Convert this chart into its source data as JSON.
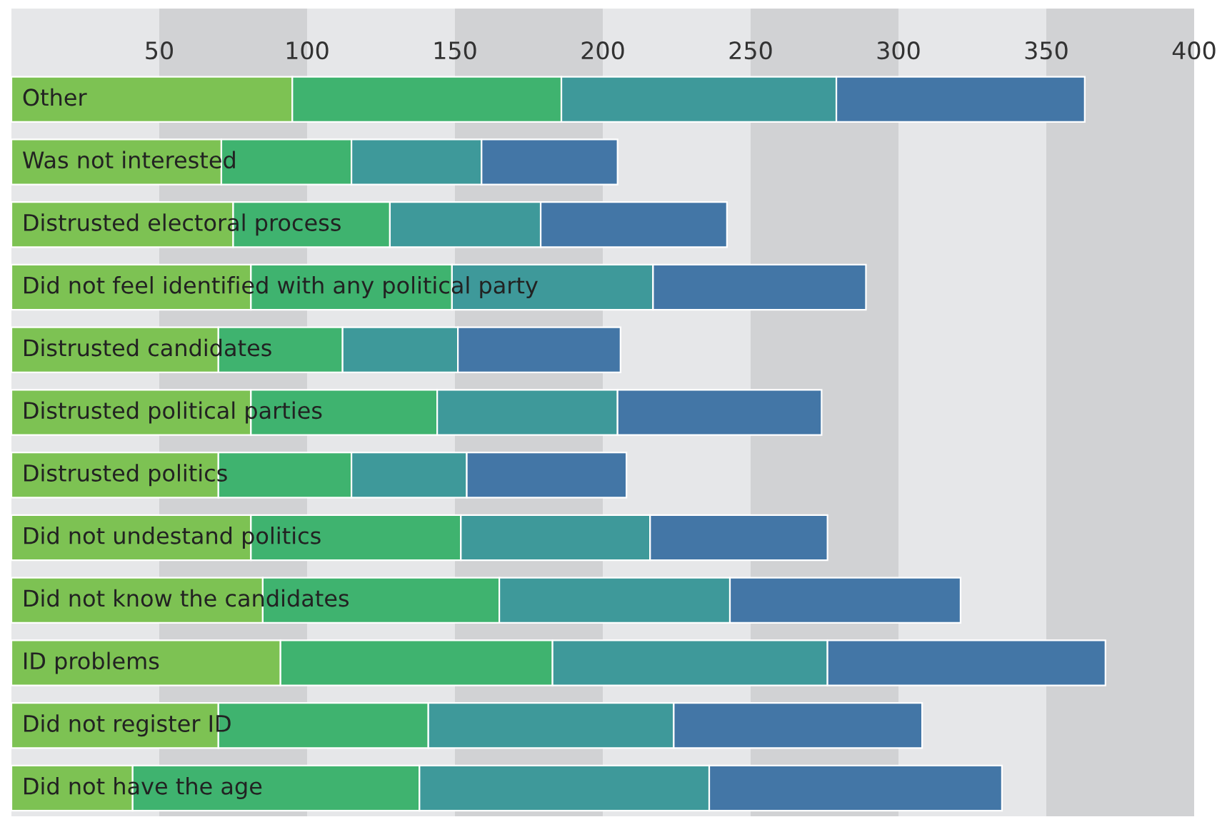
{
  "chart_data": {
    "type": "bar",
    "orientation": "horizontal",
    "stacked": true,
    "categories": [
      "Other",
      "Was not interested",
      "Distrusted electoral process",
      "Did not feel identified with any political party",
      "Distrusted candidates",
      "Distrusted political parties",
      "Distrusted politics",
      "Did not undestand politics",
      "Did not know the candidates",
      "ID problems",
      "Did not register ID",
      "Did not have the age"
    ],
    "series": [
      {
        "color": "#7dc253",
        "values": [
          95,
          71,
          75,
          81,
          70,
          81,
          70,
          81,
          85,
          91,
          70,
          41
        ]
      },
      {
        "color": "#3fb36f",
        "values": [
          91,
          44,
          53,
          68,
          42,
          63,
          45,
          71,
          80,
          92,
          71,
          97
        ]
      },
      {
        "color": "#3e999a",
        "values": [
          93,
          44,
          51,
          68,
          39,
          61,
          39,
          64,
          78,
          93,
          83,
          98
        ]
      },
      {
        "color": "#4376a6",
        "values": [
          84,
          46,
          63,
          72,
          55,
          69,
          54,
          60,
          78,
          94,
          84,
          99
        ]
      }
    ],
    "xlim": [
      0,
      400
    ],
    "xticks": [
      50,
      100,
      150,
      200,
      250,
      300,
      350,
      400
    ],
    "bands": [
      {
        "axis": "x",
        "from": 50,
        "to": 100,
        "color": "#d1d2d4"
      },
      {
        "axis": "x",
        "from": 150,
        "to": 200,
        "color": "#d1d2d4"
      },
      {
        "axis": "x",
        "from": 250,
        "to": 300,
        "color": "#d1d2d4"
      },
      {
        "axis": "x",
        "from": 350,
        "to": 400,
        "color": "#d1d2d4"
      }
    ],
    "grid": false,
    "legend": false
  }
}
